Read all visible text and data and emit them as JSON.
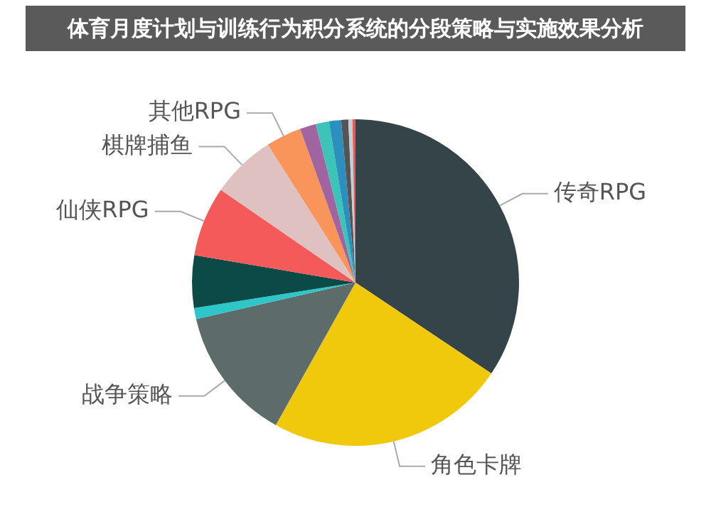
{
  "chart_data": {
    "type": "pie",
    "title": "体育月度计划与训练行为积分系统的分段策略与实施效果分析",
    "categories": [
      "传奇RPG",
      "角色卡牌",
      "战争策略",
      null,
      null,
      "仙侠RPG",
      "棋牌捕鱼",
      "其他RPG",
      null,
      null,
      null,
      null,
      null,
      null
    ],
    "values": [
      34.4,
      23.7,
      13.3,
      1.1,
      5.2,
      6.9,
      6.4,
      3.5,
      1.6,
      1.3,
      1.2,
      0.7,
      0.4,
      0.3
    ],
    "colors": [
      "#344449",
      "#f0c80c",
      "#5e6b6b",
      "#2ec7c9",
      "#0b4a47",
      "#f55a5a",
      "#e0c1c1",
      "#f9955a",
      "#a065a0",
      "#3cc4b8",
      "#2b8fc0",
      "#555555",
      "#c0d0d8",
      "#f25555"
    ],
    "legend": false
  }
}
